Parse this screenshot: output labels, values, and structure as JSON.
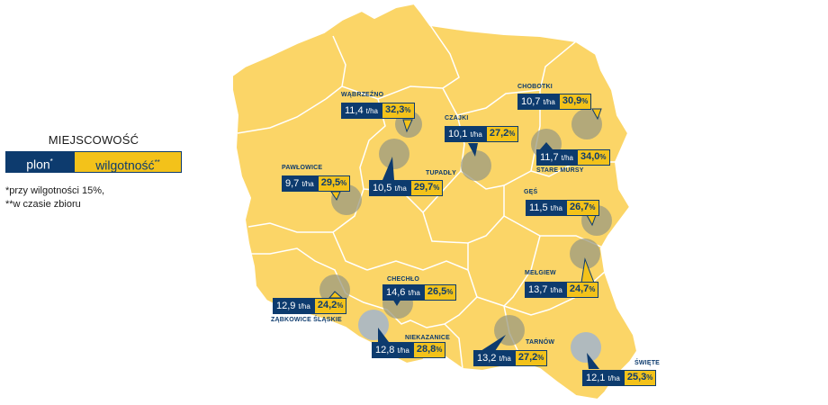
{
  "legend": {
    "title": "MIEJSCOWOŚĆ",
    "plon_label": "plon",
    "plon_mark": "*",
    "wilg_label": "wilgotność",
    "wilg_mark": "**"
  },
  "footnotes": {
    "line1": "*przy wilgotności 15%,",
    "line2": "**w czasie zbioru"
  },
  "unit": "t/ha",
  "percent_sign": "%",
  "locations": [
    {
      "name": "WĄBRZEŹNO",
      "plon": "11,4",
      "wilg": "32,3"
    },
    {
      "name": "CZAJKI",
      "plon": "10,1",
      "wilg": "27,2"
    },
    {
      "name": "CHOBOTKI",
      "plon": "10,7",
      "wilg": "30,9"
    },
    {
      "name": "STARE MURSY",
      "plon": "11,7",
      "wilg": "34,0"
    },
    {
      "name": "PAWŁOWICE",
      "plon": "9,7",
      "wilg": "29,5"
    },
    {
      "name": "TUPADŁY",
      "plon": "10,5",
      "wilg": "29,7"
    },
    {
      "name": "GĘŚ",
      "plon": "11,5",
      "wilg": "26,7"
    },
    {
      "name": "MEŁGIEW",
      "plon": "13,7",
      "wilg": "24,7"
    },
    {
      "name": "CHECHŁO",
      "plon": "14,6",
      "wilg": "26,5"
    },
    {
      "name": "ZĄBKOWICE ŚLĄSKIE",
      "plon": "12,9",
      "wilg": "24,2"
    },
    {
      "name": "NIEKAZANICE",
      "plon": "12,8",
      "wilg": "28,8"
    },
    {
      "name": "TARNÓW",
      "plon": "13,2",
      "wilg": "27,2"
    },
    {
      "name": "ŚWIĘTE",
      "plon": "12,1",
      "wilg": "25,3"
    }
  ],
  "colors": {
    "map_fill": "#fbd567",
    "border": "#ffffff",
    "navy": "#0d3b6e",
    "yellow": "#f3c21a",
    "marker": "#9b9a80",
    "marker_light": "#a7b7c8"
  }
}
